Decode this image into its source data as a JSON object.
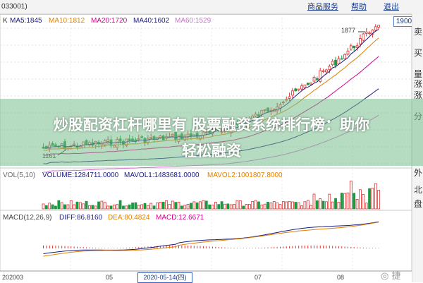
{
  "topbar": {
    "code_fragment": "033001)",
    "nav": [
      "商品服务",
      "帮助",
      "退出"
    ]
  },
  "price_box": "1900",
  "kline": {
    "label": "K",
    "ma": [
      {
        "text": "MA5:1845",
        "color": "#1a1a80"
      },
      {
        "text": "MA10:1812",
        "color": "#e08000"
      },
      {
        "text": "MA20:1720",
        "color": "#d4008a"
      },
      {
        "text": "MA40:1602",
        "color": "#1a1a80"
      },
      {
        "text": "MA60:1529",
        "color": "#d070d0"
      }
    ],
    "high_label": "1877",
    "low_label": "1161"
  },
  "volume": {
    "indicators": [
      {
        "text": "VOL(5,10)",
        "color": "#666666"
      },
      {
        "text": "VOLUME:1284711.0000",
        "color": "#1a1a80"
      },
      {
        "text": "MAVOL1:1483681.0000",
        "color": "#1a1a80"
      },
      {
        "text": "MAVOL2:1001807.8000",
        "color": "#e08000"
      }
    ]
  },
  "macd": {
    "indicators": [
      {
        "text": "MACD(12,26,9)",
        "color": "#444444"
      },
      {
        "text": "DIFF:86.8160",
        "color": "#1a1a80"
      },
      {
        "text": "DEA:80.4824",
        "color": "#e08000"
      },
      {
        "text": "MACD:12.6671",
        "color": "#d4008a"
      }
    ]
  },
  "xaxis": {
    "labels": [
      "202003",
      "05",
      "07",
      "08"
    ],
    "cursor_date": "2020-05-14(四)"
  },
  "right_panel": [
    "卖",
    "买",
    "量",
    "涨",
    "涨",
    "分",
    "外",
    "北",
    "盘"
  ],
  "banner": {
    "line1": "炒股配资杠杆哪里有 股票融资系统排行榜：助你",
    "line2": "轻松融资"
  },
  "watermark": "◎ 捷"
}
